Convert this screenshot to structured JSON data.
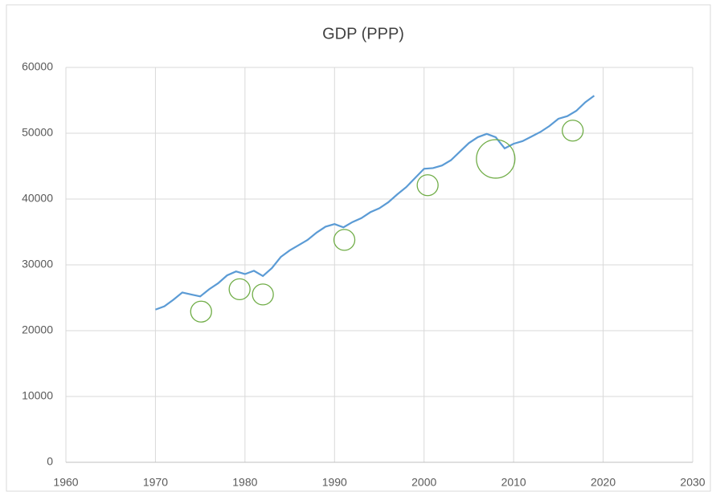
{
  "chart_data": {
    "type": "line",
    "title": "GDP (PPP)",
    "x": [
      1970,
      1971,
      1972,
      1973,
      1974,
      1975,
      1976,
      1977,
      1978,
      1979,
      1980,
      1981,
      1982,
      1983,
      1984,
      1985,
      1986,
      1987,
      1988,
      1989,
      1990,
      1991,
      1992,
      1993,
      1994,
      1995,
      1996,
      1997,
      1998,
      1999,
      2000,
      2001,
      2002,
      2003,
      2004,
      2005,
      2006,
      2007,
      2008,
      2009,
      2010,
      2011,
      2012,
      2013,
      2014,
      2015,
      2016,
      2017,
      2018,
      2019
    ],
    "series": [
      {
        "type": "line",
        "color": "#5b9bd5",
        "values": [
          23200,
          23700,
          24700,
          25800,
          25500,
          25200,
          26300,
          27200,
          28400,
          29000,
          28600,
          29100,
          28300,
          29500,
          31200,
          32200,
          33000,
          33800,
          34900,
          35800,
          36200,
          35700,
          36500,
          37100,
          38000,
          38600,
          39500,
          40700,
          41800,
          43200,
          44600,
          44700,
          45100,
          45900,
          47200,
          48500,
          49400,
          49900,
          49400,
          47700,
          48400,
          48800,
          49500,
          50200,
          51100,
          52200,
          52600,
          53400,
          54700,
          55700
        ]
      },
      {
        "type": "bubble",
        "color": "#70ad47",
        "x": [
          1975.1,
          1979.4,
          1982,
          1991.1,
          2000.4,
          2008,
          2016.6
        ],
        "values": [
          22900,
          26300,
          25500,
          33800,
          42100,
          46100,
          50400
        ],
        "sizes": [
          1,
          1,
          1,
          1,
          1,
          3.4,
          1
        ]
      }
    ],
    "xlim": [
      1960,
      2030
    ],
    "xticks": [
      1960,
      1970,
      1980,
      1990,
      2000,
      2010,
      2020,
      2030
    ],
    "ylim": [
      0,
      60000
    ],
    "yticks": [
      0,
      10000,
      20000,
      30000,
      40000,
      50000,
      60000
    ],
    "grid": true
  }
}
